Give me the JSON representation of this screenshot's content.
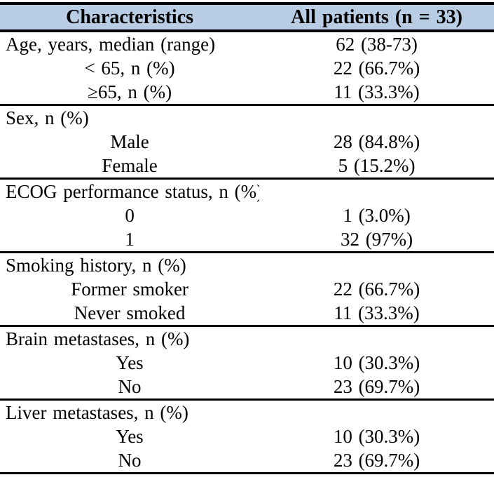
{
  "table": {
    "colors": {
      "header_bg": "#b8cce4",
      "border": "#000000",
      "text": "#000000"
    },
    "header": {
      "col1": "Characteristics",
      "col2": "All patients (n = 33)"
    },
    "sections": [
      {
        "rows": [
          {
            "label": "Age, years, median (range)",
            "value": "62 (38-73)",
            "indent": false
          },
          {
            "label": "< 65, n (%)",
            "value": "22 (66.7%)",
            "indent": true
          },
          {
            "label": "≥65, n (%)",
            "value": "11 (33.3%)",
            "indent": true
          }
        ]
      },
      {
        "rows": [
          {
            "label": "Sex, n (%)",
            "value": "",
            "indent": false
          },
          {
            "label": "Male",
            "value": "28 (84.8%)",
            "indent": true
          },
          {
            "label": "Female",
            "value": "5 (15.2%)",
            "indent": true
          }
        ]
      },
      {
        "rows": [
          {
            "label": "ECOG performance status, n (%)",
            "value": "",
            "indent": false
          },
          {
            "label": "0",
            "value": "1 (3.0%)",
            "indent": true
          },
          {
            "label": "1",
            "value": "32 (97%)",
            "indent": true
          }
        ]
      },
      {
        "rows": [
          {
            "label": "Smoking history, n (%)",
            "value": "",
            "indent": false
          },
          {
            "label": "Former smoker",
            "value": "22 (66.7%)",
            "indent": true
          },
          {
            "label": "Never smoked",
            "value": "11 (33.3%)",
            "indent": true
          }
        ]
      },
      {
        "rows": [
          {
            "label": "Brain metastases, n (%)",
            "value": "",
            "indent": false
          },
          {
            "label": "Yes",
            "value": "10 (30.3%)",
            "indent": true
          },
          {
            "label": "No",
            "value": "23 (69.7%)",
            "indent": true
          }
        ]
      },
      {
        "rows": [
          {
            "label": "Liver metastases, n (%)",
            "value": "",
            "indent": false
          },
          {
            "label": "Yes",
            "value": "10 (30.3%)",
            "indent": true
          },
          {
            "label": "No",
            "value": "23 (69.7%)",
            "indent": true
          }
        ]
      }
    ]
  }
}
